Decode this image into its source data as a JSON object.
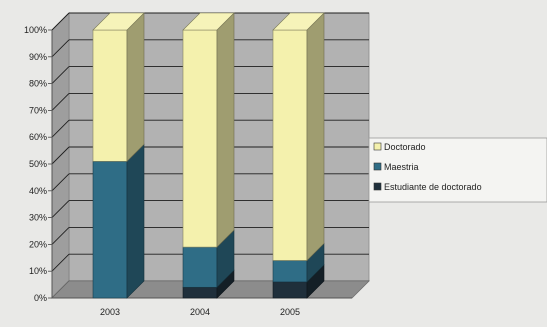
{
  "chart_data": {
    "type": "bar",
    "stacked": true,
    "percent_stacked": true,
    "three_d": true,
    "categories": [
      "2003",
      "2004",
      "2005"
    ],
    "series": [
      {
        "name": "Estudiante de doctorado",
        "color": "#1f2f3b",
        "values": [
          0,
          4,
          6
        ]
      },
      {
        "name": "Maestria",
        "color": "#2f6d86",
        "values": [
          51,
          15,
          8
        ]
      },
      {
        "name": "Doctorado",
        "color": "#f4f1ad",
        "values": [
          49,
          81,
          86
        ]
      }
    ],
    "y_tick_labels": [
      "0%",
      "10%",
      "20%",
      "30%",
      "40%",
      "50%",
      "60%",
      "70%",
      "80%",
      "90%",
      "100%"
    ],
    "ylim": [
      0,
      100
    ],
    "grid": true,
    "legend_position": "right",
    "legend_order": [
      "Doctorado",
      "Maestria",
      "Estudiante de doctorado"
    ],
    "title": "",
    "xlabel": "",
    "ylabel": ""
  }
}
